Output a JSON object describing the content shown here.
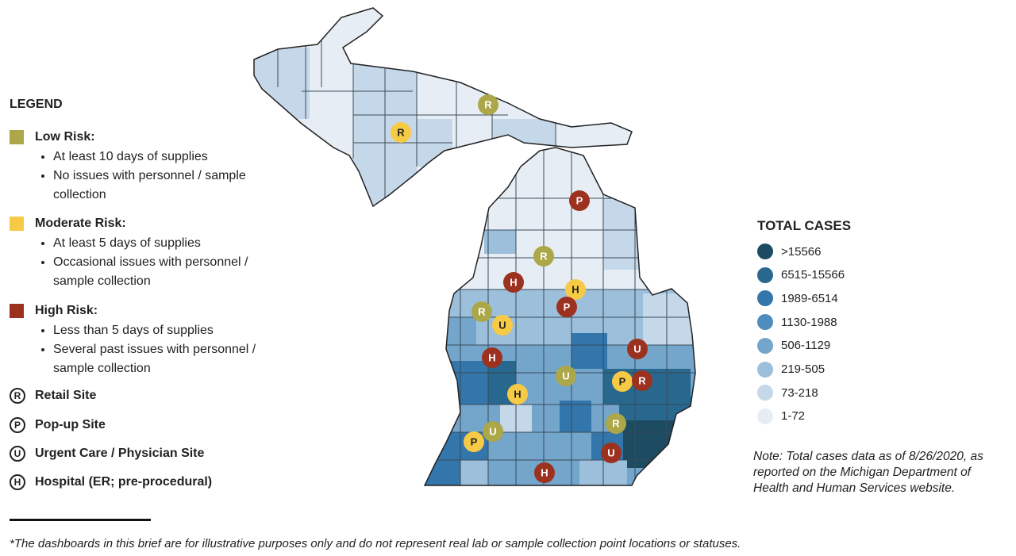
{
  "legend": {
    "title": "LEGEND",
    "risks": [
      {
        "name": "Low Risk:",
        "color": "#aca748",
        "bullets": [
          "At least 10 days of supplies",
          "No issues with personnel / sample collection"
        ]
      },
      {
        "name": "Moderate Risk:",
        "color": "#f7ca45",
        "bullets": [
          "At least 5 days of supplies",
          "Occasional issues with personnel / sample collection"
        ]
      },
      {
        "name": "High Risk:",
        "color": "#9c3120",
        "bullets": [
          "Less than 5 days of supplies",
          "Several past issues with personnel / sample collection"
        ]
      }
    ],
    "sites": [
      {
        "letter": "R",
        "label": "Retail Site"
      },
      {
        "letter": "P",
        "label": "Pop-up Site"
      },
      {
        "letter": "U",
        "label": "Urgent Care / Physician Site"
      },
      {
        "letter": "H",
        "label": "Hospital (ER; pre-procedural)"
      }
    ]
  },
  "total_cases": {
    "title": "TOTAL CASES",
    "items": [
      {
        "label": ">15566",
        "color": "#1d4b62"
      },
      {
        "label": "6515-15566",
        "color": "#28678e"
      },
      {
        "label": "1989-6514",
        "color": "#3376ab"
      },
      {
        "label": "1130-1988",
        "color": "#4e8dbd"
      },
      {
        "label": "506-1129",
        "color": "#74a5cb"
      },
      {
        "label": "219-505",
        "color": "#9cbfdb"
      },
      {
        "label": "73-218",
        "color": "#c5d8e9"
      },
      {
        "label": "1-72",
        "color": "#e7edf4"
      }
    ]
  },
  "note": "Note: Total cases data as of 8/26/2020, as reported on the Michigan Department of Health and Human Services website.",
  "footnote": "*The dashboards in this brief are for illustrative purposes only and do not represent real lab or sample collection point locations or statuses.",
  "markers": [
    {
      "label": "R",
      "color": "#aca748",
      "text_color": "#ffffff"
    },
    {
      "label": "R",
      "color": "#f7ca45",
      "text_color": "#222222"
    },
    {
      "label": "P",
      "color": "#9c3120",
      "text_color": "#ffffff"
    },
    {
      "label": "R",
      "color": "#aca748",
      "text_color": "#ffffff"
    },
    {
      "label": "H",
      "color": "#9c3120",
      "text_color": "#ffffff"
    },
    {
      "label": "H",
      "color": "#f7ca45",
      "text_color": "#222222"
    },
    {
      "label": "P",
      "color": "#9c3120",
      "text_color": "#ffffff"
    },
    {
      "label": "R",
      "color": "#aca748",
      "text_color": "#ffffff"
    },
    {
      "label": "U",
      "color": "#f7ca45",
      "text_color": "#222222"
    },
    {
      "label": "U",
      "color": "#9c3120",
      "text_color": "#ffffff"
    },
    {
      "label": "H",
      "color": "#9c3120",
      "text_color": "#ffffff"
    },
    {
      "label": "U",
      "color": "#aca748",
      "text_color": "#ffffff"
    },
    {
      "label": "P",
      "color": "#f7ca45",
      "text_color": "#222222"
    },
    {
      "label": "R",
      "color": "#9c3120",
      "text_color": "#ffffff"
    },
    {
      "label": "H",
      "color": "#f7ca45",
      "text_color": "#222222"
    },
    {
      "label": "R",
      "color": "#aca748",
      "text_color": "#ffffff"
    },
    {
      "label": "U",
      "color": "#aca748",
      "text_color": "#ffffff"
    },
    {
      "label": "P",
      "color": "#f7ca45",
      "text_color": "#222222"
    },
    {
      "label": "U",
      "color": "#9c3120",
      "text_color": "#ffffff"
    },
    {
      "label": "H",
      "color": "#9c3120",
      "text_color": "#ffffff"
    }
  ]
}
